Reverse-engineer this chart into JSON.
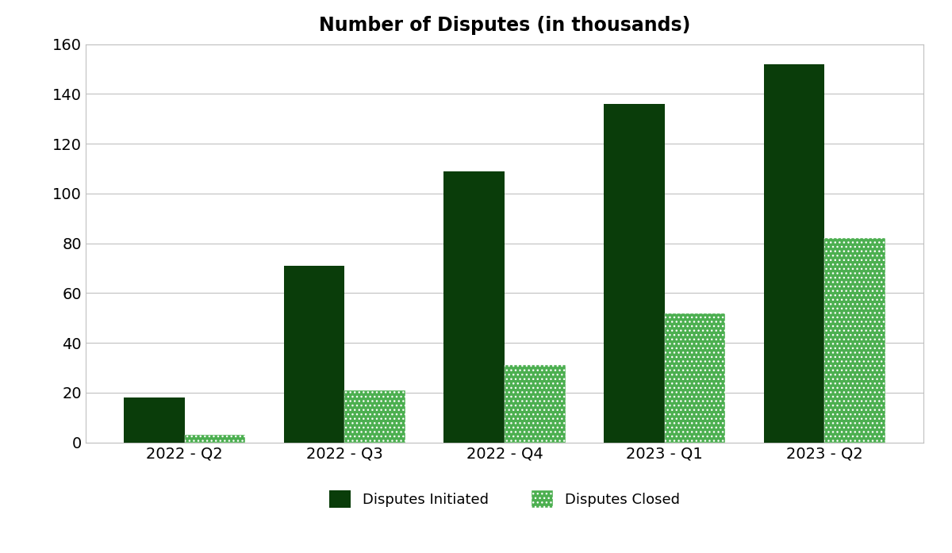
{
  "title": "Number of Disputes (in thousands)",
  "categories": [
    "2022 - Q2",
    "2022 - Q3",
    "2022 - Q4",
    "2023 - Q1",
    "2023 - Q2"
  ],
  "disputes_initiated": [
    18,
    71,
    109,
    136,
    152
  ],
  "disputes_closed": [
    3,
    21,
    31,
    52,
    82
  ],
  "color_initiated": "#0a3d0a",
  "color_closed": "#4caf50",
  "ylim": [
    0,
    160
  ],
  "yticks": [
    0,
    20,
    40,
    60,
    80,
    100,
    120,
    140,
    160
  ],
  "legend_initiated": "Disputes Initiated",
  "legend_closed": "Disputes Closed",
  "bar_width": 0.38,
  "background_color": "#ffffff",
  "grid_color": "#c0c0c0",
  "title_fontsize": 17,
  "tick_fontsize": 14,
  "legend_fontsize": 13
}
